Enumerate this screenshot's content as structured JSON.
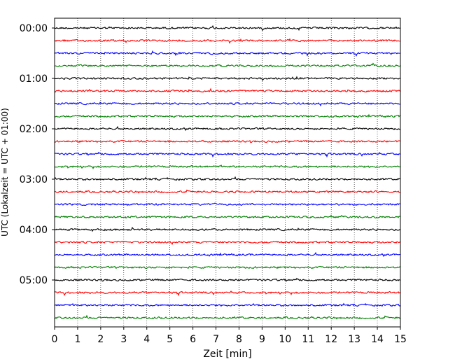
{
  "chart_data": {
    "type": "line",
    "title": "",
    "xlabel": "Zeit  [min]",
    "ylabel": "UTC (Lokalzeit = UTC + 01:00)",
    "xlim": [
      0,
      15
    ],
    "x_ticks": [
      "0",
      "1",
      "2",
      "3",
      "4",
      "5",
      "6",
      "7",
      "8",
      "9",
      "10",
      "11",
      "12",
      "13",
      "14",
      "15"
    ],
    "y_ticks": [
      "00:00",
      "01:00",
      "02:00",
      "03:00",
      "04:00",
      "05:00"
    ],
    "trace_interval_min": 15,
    "trace_count": 24,
    "trace_colors": [
      "#000000",
      "#ff0000",
      "#0000ff",
      "#007f00"
    ],
    "grid": "vertical dotted at each minute",
    "legend": "none"
  }
}
